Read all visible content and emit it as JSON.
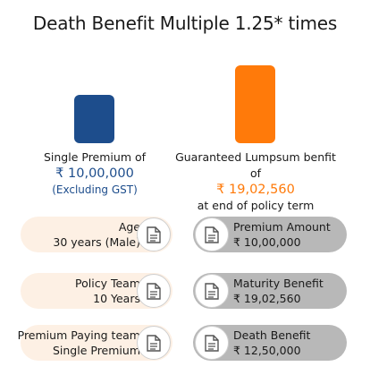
{
  "title": "Death Benefit Multiple 1.25* times",
  "colors": {
    "premium": "#1d4d8c",
    "benefit": "#ff7a0a",
    "left_pill": "#fdf0e4",
    "right_pill": "#b8b8b8"
  },
  "premium": {
    "label": "Single Premium of",
    "amount": "₹ 10,00,000",
    "note": "(Excluding GST)"
  },
  "benefit": {
    "label": "Guaranteed Lumpsum benfit of",
    "amount": "₹ 19,02,560",
    "note": "at end of policy term"
  },
  "details_left": [
    {
      "label": "Age",
      "value": "30 years (Male)",
      "icon": "document-icon"
    },
    {
      "label": "Policy Team",
      "value": "10 Years",
      "icon": "document-icon"
    },
    {
      "label": "Premium Paying team",
      "value": "Single Premium",
      "icon": "document-icon"
    }
  ],
  "details_right": [
    {
      "label": "Premium Amount",
      "value": "₹ 10,00,000",
      "icon": "document-icon"
    },
    {
      "label": "Maturity Benefit",
      "value": "₹ 19,02,560",
      "icon": "document-icon"
    },
    {
      "label": "Death Benefit",
      "value": "₹ 12,50,000",
      "icon": "document-icon"
    }
  ]
}
